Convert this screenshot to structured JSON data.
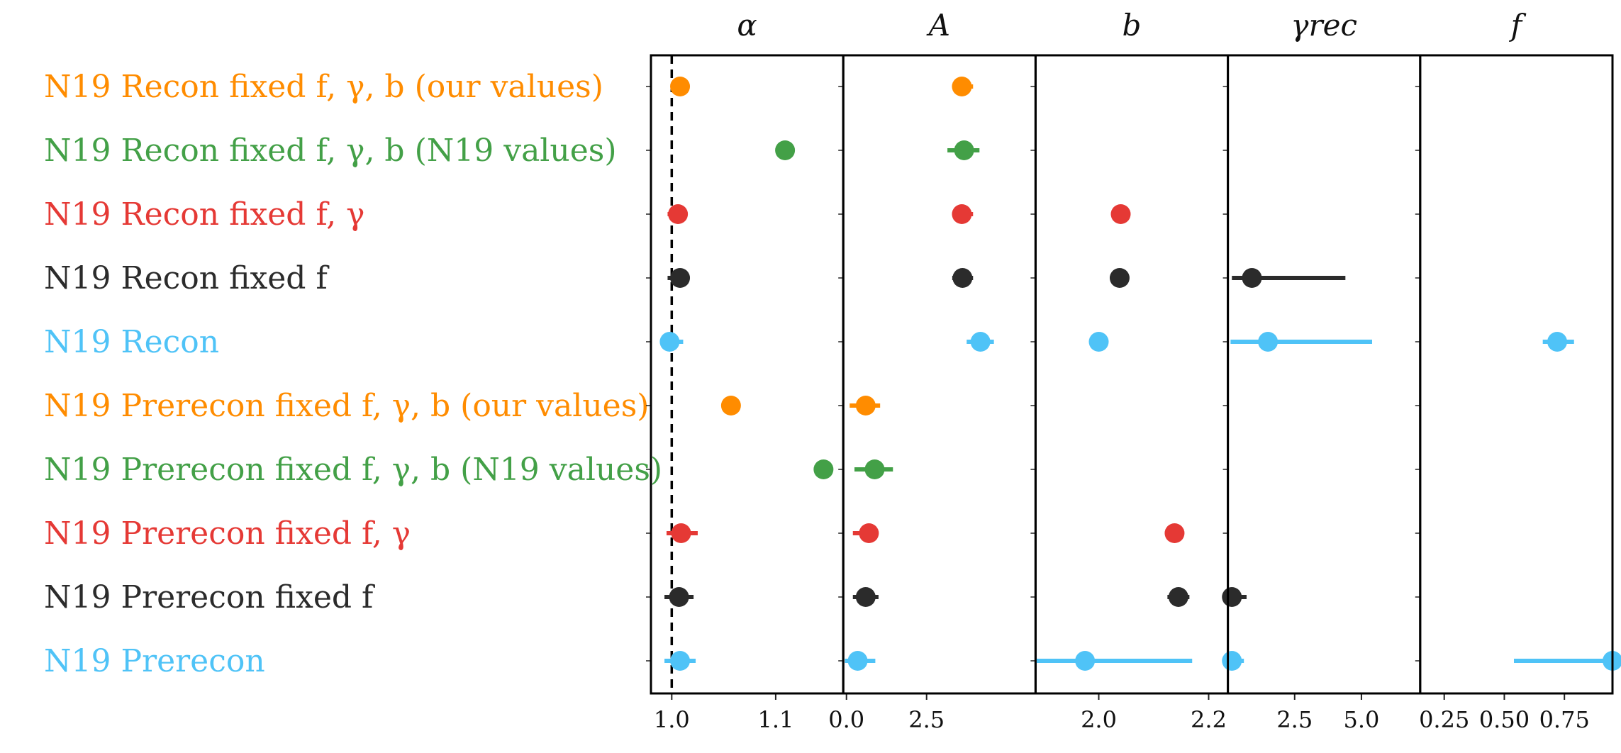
{
  "colors": {
    "orange": "#ff8c00",
    "green": "#43a047",
    "red": "#e53935",
    "black": "#2b2b2b",
    "cyan": "#4fc3f7"
  },
  "chart_data": {
    "type": "scatter",
    "variant": "forest-plot with horizontal error bars",
    "reference_line": {
      "panel": "alpha",
      "value": 1.0,
      "style": "dashed"
    },
    "rows": [
      {
        "label": "N19 Recon fixed f, γ, b (our values)",
        "color": "orange"
      },
      {
        "label": "N19 Recon fixed f, γ, b (N19 values)",
        "color": "green"
      },
      {
        "label": "N19 Recon fixed f, γ",
        "color": "red"
      },
      {
        "label": "N19 Recon fixed f",
        "color": "black"
      },
      {
        "label": "N19 Recon",
        "color": "cyan"
      },
      {
        "label": "N19 Prerecon fixed f, γ, b (our values)",
        "color": "orange"
      },
      {
        "label": "N19 Prerecon fixed f, γ, b (N19 values)",
        "color": "green"
      },
      {
        "label": "N19 Prerecon fixed f, γ",
        "color": "red"
      },
      {
        "label": "N19 Prerecon fixed f",
        "color": "black"
      },
      {
        "label": "N19 Prerecon",
        "color": "cyan"
      }
    ],
    "panels": [
      {
        "key": "alpha",
        "title": "α",
        "xlim": [
          0.98,
          1.165
        ],
        "ticks": [
          {
            "v": 1.0,
            "t": "1.0"
          },
          {
            "v": 1.1,
            "t": "1.1"
          }
        ],
        "points": [
          {
            "x": 1.008,
            "lo": 1.008,
            "hi": 1.008
          },
          {
            "x": 1.109,
            "lo": 1.109,
            "hi": 1.109
          },
          {
            "x": 1.006,
            "lo": 0.996,
            "hi": 1.012
          },
          {
            "x": 1.008,
            "lo": 0.996,
            "hi": 1.012
          },
          {
            "x": 0.998,
            "lo": 0.991,
            "hi": 1.011
          },
          {
            "x": 1.057,
            "lo": 1.057,
            "hi": 1.057
          },
          {
            "x": 1.146,
            "lo": 1.146,
            "hi": 1.146
          },
          {
            "x": 1.009,
            "lo": 0.995,
            "hi": 1.025
          },
          {
            "x": 1.007,
            "lo": 0.993,
            "hi": 1.021
          },
          {
            "x": 1.008,
            "lo": 0.993,
            "hi": 1.023
          }
        ]
      },
      {
        "key": "A",
        "title": "A",
        "xlim": [
          -0.1,
          5.9
        ],
        "ticks": [
          {
            "v": 0.0,
            "t": "0.0"
          },
          {
            "v": 2.5,
            "t": "2.5"
          }
        ],
        "points": [
          {
            "x": 3.6,
            "lo": 3.35,
            "hi": 3.95
          },
          {
            "x": 3.67,
            "lo": 3.15,
            "hi": 4.15
          },
          {
            "x": 3.6,
            "lo": 3.35,
            "hi": 3.95
          },
          {
            "x": 3.62,
            "lo": 3.3,
            "hi": 3.95
          },
          {
            "x": 4.18,
            "lo": 3.75,
            "hi": 4.6
          },
          {
            "x": 0.6,
            "lo": 0.1,
            "hi": 1.05
          },
          {
            "x": 0.88,
            "lo": 0.25,
            "hi": 1.45
          },
          {
            "x": 0.7,
            "lo": 0.2,
            "hi": 1.0
          },
          {
            "x": 0.6,
            "lo": 0.2,
            "hi": 1.0
          },
          {
            "x": 0.35,
            "lo": -0.05,
            "hi": 0.9
          }
        ]
      },
      {
        "key": "b",
        "title": "b",
        "xlim": [
          1.885,
          2.235
        ],
        "ticks": [
          {
            "v": 2.0,
            "t": "2.0"
          },
          {
            "v": 2.2,
            "t": "2.2"
          }
        ],
        "points": [
          {
            "x": null,
            "lo": null,
            "hi": null
          },
          {
            "x": null,
            "lo": null,
            "hi": null
          },
          {
            "x": 2.04,
            "lo": 2.04,
            "hi": 2.04
          },
          {
            "x": 2.038,
            "lo": 2.038,
            "hi": 2.038
          },
          {
            "x": 2.0,
            "lo": 1.985,
            "hi": 2.015
          },
          {
            "x": null,
            "lo": null,
            "hi": null
          },
          {
            "x": null,
            "lo": null,
            "hi": null
          },
          {
            "x": 2.138,
            "lo": 2.125,
            "hi": 2.155
          },
          {
            "x": 2.145,
            "lo": 2.125,
            "hi": 2.165
          },
          {
            "x": 1.975,
            "lo": 1.885,
            "hi": 2.17
          }
        ]
      },
      {
        "key": "gamma_rec",
        "title": "γrec",
        "xlim": [
          0.0,
          7.2
        ],
        "ticks": [
          {
            "v": 2.5,
            "t": "2.5"
          },
          {
            "v": 5.0,
            "t": "5.0"
          }
        ],
        "points": [
          {
            "x": null,
            "lo": null,
            "hi": null
          },
          {
            "x": null,
            "lo": null,
            "hi": null
          },
          {
            "x": null,
            "lo": null,
            "hi": null
          },
          {
            "x": 0.9,
            "lo": 0.15,
            "hi": 4.4
          },
          {
            "x": 1.5,
            "lo": 0.1,
            "hi": 5.4
          },
          {
            "x": null,
            "lo": null,
            "hi": null
          },
          {
            "x": null,
            "lo": null,
            "hi": null
          },
          {
            "x": null,
            "lo": null,
            "hi": null
          },
          {
            "x": 0.15,
            "lo": 0.0,
            "hi": 0.7
          },
          {
            "x": 0.15,
            "lo": 0.0,
            "hi": 0.6
          }
        ]
      },
      {
        "key": "f",
        "title": "f",
        "xlim": [
          0.15,
          0.95
        ],
        "ticks": [
          {
            "v": 0.25,
            "t": "0.25"
          },
          {
            "v": 0.5,
            "t": "0.50"
          },
          {
            "v": 0.75,
            "t": "0.75"
          }
        ],
        "points": [
          {
            "x": null,
            "lo": null,
            "hi": null
          },
          {
            "x": null,
            "lo": null,
            "hi": null
          },
          {
            "x": null,
            "lo": null,
            "hi": null
          },
          {
            "x": null,
            "lo": null,
            "hi": null
          },
          {
            "x": 0.72,
            "lo": 0.66,
            "hi": 0.79
          },
          {
            "x": null,
            "lo": null,
            "hi": null
          },
          {
            "x": null,
            "lo": null,
            "hi": null
          },
          {
            "x": null,
            "lo": null,
            "hi": null
          },
          {
            "x": null,
            "lo": null,
            "hi": null
          },
          {
            "x": 0.95,
            "lo": 0.54,
            "hi": 0.95
          }
        ]
      }
    ]
  }
}
